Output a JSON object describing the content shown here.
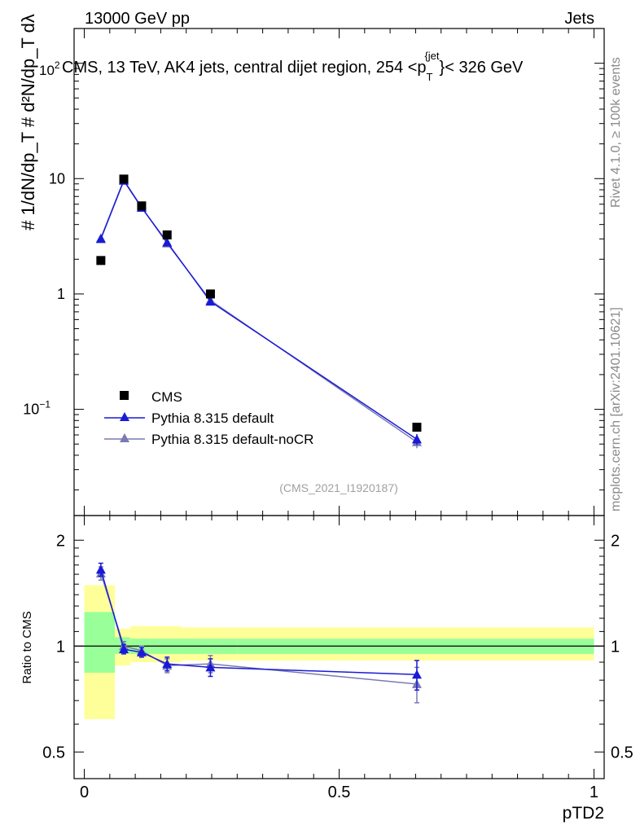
{
  "header": {
    "left": "13000 GeV pp",
    "right": "Jets"
  },
  "side_labels": {
    "rivet": "Rivet 4.1.0, ≥ 100k events",
    "mcplots": "mcplots.cern.ch [arXiv:2401.10621]"
  },
  "chart_data": [
    {
      "type": "scatter",
      "panel": "main",
      "title": "CMS, 13 TeV, AK4 jets, central dijet region, 254 <p",
      "title_sub": "T",
      "title_sup": "{jet",
      "title_end": "}< 326 GeV",
      "y_exponent_label": "10",
      "y_exponent_sup": "2",
      "ylabel": "# 1/dN/dp_T # d²N/dp_T dλ",
      "yscale": "log",
      "ylim": [
        0.012,
        200
      ],
      "xlim": [
        -0.02,
        1.02
      ],
      "y_ticks": [
        {
          "value": 10,
          "label": "10",
          "sup": ""
        },
        {
          "value": 1,
          "label": "1",
          "sup": ""
        },
        {
          "value": 0.1,
          "label": "10",
          "sup": "−1"
        }
      ],
      "reference": "(CMS_2021_I1920187)",
      "legend_position": "lower-left",
      "series": [
        {
          "name": "CMS",
          "color": "#000000",
          "marker": "square",
          "x": [
            0.0325,
            0.0775,
            0.1125,
            0.1625,
            0.2475,
            0.6525
          ],
          "y": [
            1.95,
            9.9,
            5.8,
            3.25,
            1.0,
            0.07
          ]
        },
        {
          "name": "Pythia 8.315 default",
          "color": "#1a1ad6",
          "marker": "triangle",
          "x": [
            0.0325,
            0.0775,
            0.1125,
            0.1625,
            0.2475,
            0.6525
          ],
          "y": [
            3.0,
            9.6,
            5.6,
            2.8,
            0.86,
            0.055
          ],
          "yerr": [
            0.08,
            0.15,
            0.1,
            0.06,
            0.03,
            0.006
          ]
        },
        {
          "name": "Pythia 8.315 default-noCR",
          "color": "#7a7ab4",
          "marker": "triangle",
          "x": [
            0.0325,
            0.0775,
            0.1125,
            0.1625,
            0.2475,
            0.6525
          ],
          "y": [
            3.05,
            9.7,
            5.65,
            2.75,
            0.88,
            0.052
          ],
          "yerr": [
            0.08,
            0.15,
            0.1,
            0.06,
            0.03,
            0.006
          ]
        }
      ]
    },
    {
      "type": "scatter",
      "panel": "ratio",
      "ylabel": "Ratio to CMS",
      "xlabel": "pTD2",
      "yscale": "log",
      "ylim": [
        0.42,
        2.35
      ],
      "xlim": [
        -0.02,
        1.02
      ],
      "x_ticks": [
        0,
        0.5,
        1
      ],
      "x_tick_labels": [
        "0",
        "0.5",
        "1"
      ],
      "y_ticks": [
        0.5,
        1,
        2
      ],
      "y_tick_labels": [
        "0.5",
        "1",
        "2"
      ],
      "bands": [
        {
          "x0": 0.0,
          "x1": 0.06,
          "stat_lo": 0.84,
          "stat_hi": 1.25,
          "tot_lo": 0.62,
          "tot_hi": 1.49
        },
        {
          "x0": 0.06,
          "x1": 0.09,
          "stat_lo": 0.95,
          "stat_hi": 1.06,
          "tot_lo": 0.88,
          "tot_hi": 1.12
        },
        {
          "x0": 0.09,
          "x1": 0.13,
          "stat_lo": 0.95,
          "stat_hi": 1.05,
          "tot_lo": 0.9,
          "tot_hi": 1.14
        },
        {
          "x0": 0.13,
          "x1": 0.19,
          "stat_lo": 0.95,
          "stat_hi": 1.05,
          "tot_lo": 0.9,
          "tot_hi": 1.14
        },
        {
          "x0": 0.19,
          "x1": 0.3,
          "stat_lo": 0.95,
          "stat_hi": 1.05,
          "tot_lo": 0.91,
          "tot_hi": 1.13
        },
        {
          "x0": 0.3,
          "x1": 1.0,
          "stat_lo": 0.95,
          "stat_hi": 1.05,
          "tot_lo": 0.91,
          "tot_hi": 1.13
        }
      ],
      "series": [
        {
          "name": "Pythia 8.315 default",
          "color": "#1a1ad6",
          "x": [
            0.0325,
            0.0775,
            0.1125,
            0.1625,
            0.2475,
            0.6525
          ],
          "y": [
            1.65,
            0.98,
            0.96,
            0.89,
            0.87,
            0.83
          ],
          "yerr": [
            0.07,
            0.03,
            0.03,
            0.04,
            0.05,
            0.08
          ]
        },
        {
          "name": "Pythia 8.315 default-noCR",
          "color": "#7a7ab4",
          "x": [
            0.0325,
            0.0775,
            0.1125,
            0.1625,
            0.2475,
            0.6525
          ],
          "y": [
            1.61,
            1.0,
            0.97,
            0.88,
            0.89,
            0.78
          ],
          "yerr": [
            0.07,
            0.03,
            0.03,
            0.04,
            0.05,
            0.09
          ]
        }
      ]
    }
  ]
}
